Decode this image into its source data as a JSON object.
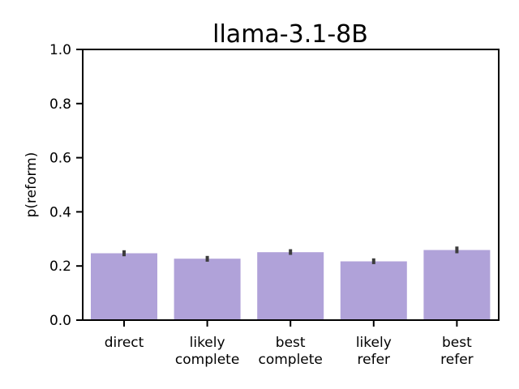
{
  "chart_data": {
    "type": "bar",
    "title": "llama-3.1-8B",
    "xlabel": "",
    "ylabel": "p(reform)",
    "categories": [
      [
        "direct"
      ],
      [
        "likely",
        "complete"
      ],
      [
        "best",
        "complete"
      ],
      [
        "likely",
        "refer"
      ],
      [
        "best",
        "refer"
      ]
    ],
    "values": [
      0.247,
      0.227,
      0.251,
      0.217,
      0.259
    ],
    "error_low": [
      0.236,
      0.216,
      0.241,
      0.207,
      0.247
    ],
    "error_high": [
      0.258,
      0.237,
      0.262,
      0.228,
      0.272
    ],
    "ylim": [
      0.0,
      1.0
    ],
    "yticks": [
      "0.0",
      "0.2",
      "0.4",
      "0.6",
      "0.8",
      "1.0"
    ],
    "grid": false,
    "legend": "none",
    "bar_color": "#b0a2d9",
    "error_color": "#3d3d3d",
    "axis_color": "#000000"
  }
}
